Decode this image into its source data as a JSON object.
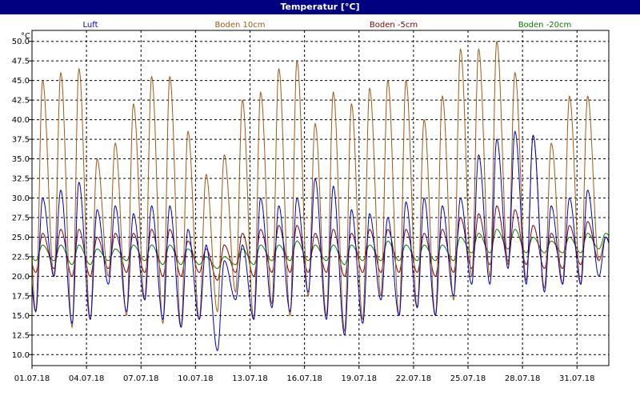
{
  "window": {
    "title": "Temperatur [°C]"
  },
  "chart_data": {
    "type": "line",
    "title": "Temperatur [°C]",
    "ylabel": "°C",
    "xlabel": "",
    "ylim": [
      8.6,
      51.4
    ],
    "xlim": [
      0,
      31.75
    ],
    "grid": true,
    "legend_placement": "top",
    "y_ticks": [
      10.0,
      12.5,
      15.0,
      17.5,
      20.0,
      22.5,
      25.0,
      27.5,
      30.0,
      32.5,
      35.0,
      37.5,
      40.0,
      42.5,
      45.0,
      47.5,
      50.0
    ],
    "x_tick_labels": [
      "01.07.18",
      "04.07.18",
      "07.07.18",
      "10.07.18",
      "13.07.18",
      "16.07.18",
      "19.07.18",
      "22.07.18",
      "25.07.18",
      "28.07.18",
      "31.07.18"
    ],
    "x_tick_days": [
      0,
      3,
      6,
      9,
      12,
      15,
      18,
      21,
      24,
      27,
      30
    ],
    "series": [
      {
        "name": "Luft",
        "color": "#0000c0",
        "daily_min": [
          15.5,
          20.0,
          14.0,
          14.5,
          19.0,
          15.5,
          17.0,
          14.5,
          13.5,
          14.5,
          10.5,
          17.0,
          14.5,
          16.0,
          15.5,
          18.0,
          14.5,
          12.5,
          14.0,
          17.0,
          15.0,
          16.0,
          15.0,
          17.5,
          19.0,
          19.0,
          21.0,
          19.0,
          18.0,
          19.0,
          19.0,
          20.0
        ],
        "daily_max": [
          30.0,
          31.0,
          32.0,
          28.5,
          29.0,
          28.0,
          29.0,
          29.0,
          26.0,
          24.0,
          22.0,
          24.0,
          30.0,
          29.0,
          30.0,
          32.5,
          31.5,
          28.5,
          28.0,
          27.5,
          29.5,
          30.0,
          29.0,
          30.0,
          35.5,
          37.5,
          38.5,
          38.0,
          29.0,
          30.0,
          31.0,
          25.0
        ]
      },
      {
        "name": "Boden 10cm",
        "color": "#a05a14",
        "daily_min": [
          15.5,
          20.0,
          13.5,
          14.5,
          20.0,
          15.0,
          17.0,
          14.0,
          13.5,
          14.5,
          15.5,
          18.0,
          14.5,
          16.5,
          15.0,
          17.5,
          15.0,
          13.0,
          14.5,
          17.5,
          15.0,
          16.0,
          15.0,
          17.0,
          20.0,
          20.0,
          21.5,
          19.5,
          18.5,
          19.0,
          19.0,
          22.0
        ],
        "daily_max": [
          45.0,
          46.0,
          46.5,
          35.0,
          37.0,
          42.0,
          45.5,
          45.5,
          38.5,
          33.0,
          35.5,
          42.5,
          43.5,
          46.5,
          47.5,
          39.5,
          43.5,
          42.0,
          44.0,
          45.0,
          45.0,
          40.0,
          43.0,
          49.0,
          49.0,
          50.0,
          46.0,
          38.0,
          37.0,
          43.0,
          43.0,
          25.0
        ]
      },
      {
        "name": "Boden -5cm",
        "color": "#800000",
        "daily_min": [
          20.5,
          21.0,
          20.0,
          20.0,
          21.0,
          20.5,
          20.5,
          20.0,
          20.0,
          20.5,
          19.5,
          20.5,
          20.0,
          20.5,
          20.5,
          20.5,
          20.5,
          20.0,
          20.5,
          20.5,
          20.5,
          20.5,
          20.0,
          20.5,
          21.0,
          21.5,
          22.0,
          21.5,
          21.0,
          21.0,
          21.5,
          22.0
        ],
        "daily_max": [
          25.5,
          26.0,
          26.0,
          25.0,
          25.5,
          25.5,
          26.0,
          26.0,
          24.5,
          23.5,
          24.0,
          25.5,
          26.0,
          26.5,
          26.5,
          25.5,
          26.0,
          25.5,
          26.0,
          26.0,
          26.0,
          25.5,
          26.0,
          27.5,
          28.0,
          29.0,
          28.5,
          26.5,
          25.5,
          26.5,
          27.0,
          25.0
        ]
      },
      {
        "name": "Boden -20cm",
        "color": "#008000",
        "daily_min": [
          22.0,
          22.0,
          21.5,
          21.5,
          22.0,
          22.0,
          22.0,
          21.5,
          21.5,
          21.5,
          21.0,
          21.5,
          21.5,
          22.0,
          22.0,
          22.0,
          22.0,
          21.5,
          22.0,
          22.0,
          22.0,
          22.0,
          22.0,
          22.0,
          23.0,
          23.0,
          23.5,
          23.0,
          23.0,
          23.0,
          23.0,
          23.5
        ],
        "daily_max": [
          24.0,
          24.0,
          24.0,
          23.5,
          23.5,
          24.0,
          24.0,
          24.0,
          23.5,
          22.5,
          22.5,
          23.5,
          24.0,
          24.0,
          24.5,
          24.0,
          24.0,
          24.0,
          24.0,
          24.5,
          24.0,
          24.0,
          24.0,
          25.0,
          25.5,
          26.0,
          26.0,
          25.0,
          24.5,
          25.0,
          25.5,
          25.5
        ]
      }
    ]
  }
}
